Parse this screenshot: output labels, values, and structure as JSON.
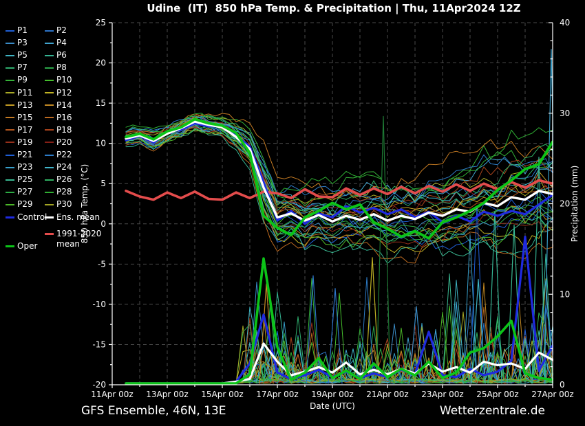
{
  "header": {
    "title": "Udine  (IT)  850 hPa Temp. & Precipitation | Thu, 11Apr2024 12Z"
  },
  "footer": {
    "left": "GFS Ensemble, 46N, 13E",
    "right": "Wetterzentrale.de"
  },
  "legend": {
    "member_labels": [
      "P1",
      "P2",
      "P3",
      "P4",
      "P5",
      "P6",
      "P7",
      "P8",
      "P9",
      "P10",
      "P11",
      "P12",
      "P13",
      "P14",
      "P15",
      "P16",
      "P17",
      "P18",
      "P19",
      "P20",
      "P21",
      "P22",
      "P23",
      "P24",
      "P25",
      "P26",
      "P27",
      "P28",
      "P29",
      "P30"
    ],
    "control_label": "Control",
    "ens_mean_label": "Ens. mean",
    "clim_label_line1": "1991-2020",
    "clim_label_line2": "mean",
    "oper_label": "Oper"
  },
  "chart_data": {
    "type": "line",
    "title": "Udine (IT) 850 hPa Temp. & Precipitation, GFS Ensemble run Thu 11Apr2024 12Z",
    "xlabel": "Date (UTC)",
    "ylabel_left": "850 hPa Temp. (°C)",
    "ylabel_right": "Precipitation (mm)",
    "ylim_left": [
      -20,
      25
    ],
    "ylim_right": [
      0,
      40
    ],
    "yticks_left": [
      25,
      20,
      15,
      10,
      5,
      0,
      -5,
      -10,
      -15,
      -20
    ],
    "yticks_right": [
      40,
      30,
      20,
      10,
      0
    ],
    "x_tick_labels": [
      "11Apr 00z",
      "13Apr 00z",
      "15Apr 00z",
      "17Apr 00z",
      "19Apr 00z",
      "21Apr 00z",
      "23Apr 00z",
      "25Apr 00z",
      "27Apr 00z"
    ],
    "x_tick_days": [
      0,
      2,
      4,
      6,
      8,
      10,
      12,
      14,
      16
    ],
    "grid": true,
    "legend_position": "left",
    "x_days": [
      0.5,
      1.0,
      1.5,
      2.0,
      2.5,
      3.0,
      3.5,
      4.0,
      4.5,
      5.0,
      5.5,
      6.0,
      6.5,
      7.0,
      7.5,
      8.0,
      8.5,
      9.0,
      9.5,
      10.0,
      10.5,
      11.0,
      11.5,
      12.0,
      12.5,
      13.0,
      13.5,
      14.0,
      14.5,
      15.0,
      15.5,
      16.0,
      16.5
    ],
    "series": {
      "ens_mean_temp": [
        10.6,
        11.0,
        10.3,
        11.2,
        11.9,
        12.7,
        12.3,
        12.0,
        10.8,
        9.3,
        4.5,
        0.8,
        1.3,
        0.4,
        1.1,
        0.3,
        1.0,
        0.5,
        1.2,
        0.4,
        1.0,
        0.6,
        1.4,
        1.0,
        1.8,
        1.5,
        2.6,
        2.2,
        3.3,
        3.0,
        4.1,
        3.7,
        5.7
      ],
      "control_temp": [
        10.4,
        10.9,
        10.1,
        11.4,
        11.7,
        12.5,
        12.1,
        12.2,
        11.0,
        9.6,
        5.2,
        0.4,
        1.6,
        0.0,
        1.3,
        0.8,
        2.2,
        1.4,
        2.0,
        1.2,
        1.8,
        0.8,
        1.5,
        0.2,
        1.0,
        0.3,
        1.5,
        1.0,
        1.6,
        1.2,
        2.4,
        3.6,
        5.3
      ],
      "oper_temp": [
        10.8,
        11.2,
        10.5,
        11.5,
        12.0,
        13.0,
        12.5,
        12.2,
        11.3,
        8.8,
        1.0,
        -0.5,
        -1.4,
        0.8,
        1.6,
        2.6,
        1.8,
        2.4,
        0.2,
        -0.6,
        -1.6,
        -0.9,
        -1.8,
        0.2,
        0.8,
        1.6,
        2.6,
        4.2,
        5.4,
        6.8,
        7.4,
        10.2,
        9.8
      ],
      "clim_mean_temp": [
        4.1,
        3.4,
        3.0,
        3.9,
        3.2,
        4.0,
        3.1,
        3.0,
        3.9,
        3.2,
        4.0,
        3.8,
        3.2,
        4.3,
        3.4,
        3.3,
        4.4,
        3.6,
        4.4,
        3.7,
        4.6,
        3.8,
        4.7,
        4.0,
        4.9,
        4.1,
        5.0,
        4.3,
        5.2,
        4.5,
        5.4,
        5.0,
        6.2
      ],
      "ens_mean_precip": [
        0,
        0,
        0,
        0,
        0,
        0,
        0,
        0,
        0.2,
        0.5,
        4.4,
        2.4,
        0.9,
        1.3,
        1.8,
        1.2,
        2.3,
        1.0,
        1.5,
        1.0,
        1.6,
        1.1,
        2.2,
        1.3,
        1.8,
        1.2,
        2.4,
        2.0,
        2.2,
        1.6,
        3.4,
        2.6,
        3.0
      ],
      "oper_precip": [
        0,
        0,
        0,
        0,
        0,
        0,
        0,
        0,
        0,
        1.0,
        13.8,
        4.0,
        0.4,
        1.2,
        2.8,
        0.6,
        1.4,
        0.5,
        2.2,
        0.7,
        1.6,
        0.9,
        2.4,
        0.6,
        1.2,
        3.4,
        3.9,
        5.2,
        6.9,
        1.1,
        0.6,
        0.4,
        0.7
      ],
      "control_precip": [
        0,
        0,
        0,
        0,
        0,
        0,
        0,
        0,
        0.2,
        2.2,
        7.6,
        1.2,
        0.5,
        0.9,
        1.5,
        0.7,
        1.3,
        0.6,
        1.1,
        0.7,
        1.5,
        1.0,
        5.7,
        0.9,
        0.7,
        1.6,
        0.9,
        1.3,
        2.5,
        16.2,
        1.4,
        4.2,
        1.6
      ]
    },
    "ensemble_spread_temp": [
      0.6,
      0.6,
      0.7,
      0.7,
      0.7,
      0.8,
      0.8,
      0.9,
      1.1,
      1.5,
      2.6,
      2.4,
      2.2,
      2.4,
      2.5,
      2.6,
      2.7,
      2.8,
      2.9,
      3.0,
      3.0,
      3.1,
      3.2,
      3.3,
      3.4,
      3.5,
      3.7,
      3.8,
      4.0,
      4.2,
      4.4,
      4.4,
      4.4
    ],
    "featured_precip_spikes": [
      {
        "day": 5.6,
        "mm": 11.0,
        "color": "#c48a24"
      },
      {
        "day": 5.75,
        "mm": 9.0,
        "color": "#2ca84b"
      },
      {
        "day": 7.3,
        "mm": 11.9,
        "color": "#2d74c8"
      },
      {
        "day": 8.1,
        "mm": 10.5,
        "color": "#2d74c8"
      },
      {
        "day": 9.45,
        "mm": 13.9,
        "color": "#c0b324"
      },
      {
        "day": 9.85,
        "mm": 29.5,
        "color": "#1e7a34"
      },
      {
        "day": 11.05,
        "mm": 8.5,
        "color": "#3a8cc8"
      },
      {
        "day": 12.5,
        "mm": 9.0,
        "color": "#38a0cc"
      },
      {
        "day": 13.3,
        "mm": 11.5,
        "color": "#3fb4c4"
      },
      {
        "day": 13.9,
        "mm": 19.0,
        "color": "#35b493"
      },
      {
        "day": 14.6,
        "mm": 17.5,
        "color": "#3ab992"
      },
      {
        "day": 15.5,
        "mm": 25.0,
        "color": "#35b493"
      },
      {
        "day": 15.95,
        "mm": 36.9,
        "color": "#3a9ec8"
      },
      {
        "day": 16.3,
        "mm": 27.0,
        "color": "#3fb4c4"
      }
    ],
    "colors": {
      "control": "#1f2ae0",
      "ens_mean": "#ffffff",
      "oper": "#0cc418",
      "clim_mean": "#e34c4c",
      "grid": "#4a4a4a",
      "axis": "#ffffff",
      "members": [
        "#1f5fd6",
        "#2d74c8",
        "#3a8cc8",
        "#41a4cf",
        "#3fb4c4",
        "#35b493",
        "#2fae6e",
        "#2ca84b",
        "#35b238",
        "#45be2d",
        "#a8aa26",
        "#c0b324",
        "#c49c24",
        "#c48a24",
        "#c47a22",
        "#bc6a20",
        "#b4561e",
        "#a8431c",
        "#962f1a",
        "#851f16",
        "#1f5fd6",
        "#2d7cc8",
        "#38a0cc",
        "#42b6cc",
        "#3ab992",
        "#30b263",
        "#2cab44",
        "#2fae33",
        "#4cb828",
        "#a3a524"
      ]
    }
  }
}
